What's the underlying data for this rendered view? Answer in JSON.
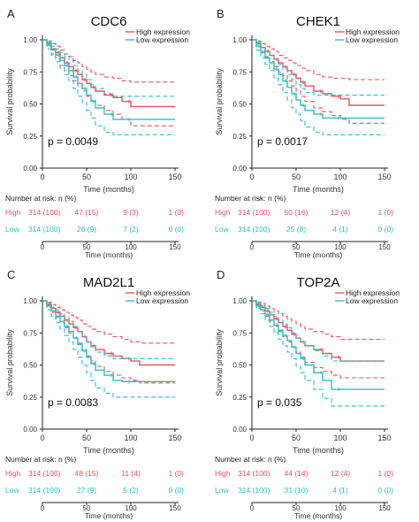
{
  "chart_data": [
    {
      "type": "line",
      "panel_letter": "A",
      "title": "CDC6",
      "xlabel": "Time (months)",
      "ylabel": "Survival probability",
      "xlim": [
        0,
        150
      ],
      "ylim": [
        0,
        1
      ],
      "xticks": [
        "0",
        "50",
        "100",
        "150"
      ],
      "yticks": [
        "0.00",
        "0.25",
        "0.50",
        "0.75",
        "1.00"
      ],
      "legend": [
        "High expression",
        "Low expression"
      ],
      "pvalue": "p = 0.0049",
      "series": [
        {
          "name": "High expression",
          "color": "#e8535a",
          "x": [
            0,
            5,
            10,
            15,
            20,
            25,
            30,
            35,
            40,
            45,
            50,
            55,
            60,
            70,
            80,
            90,
            100,
            150
          ],
          "y": [
            1.0,
            0.97,
            0.93,
            0.9,
            0.86,
            0.82,
            0.79,
            0.76,
            0.73,
            0.69,
            0.66,
            0.63,
            0.6,
            0.57,
            0.55,
            0.52,
            0.48,
            0.48
          ],
          "upper": [
            1.0,
            0.99,
            0.97,
            0.95,
            0.92,
            0.89,
            0.87,
            0.84,
            0.82,
            0.79,
            0.77,
            0.75,
            0.73,
            0.71,
            0.7,
            0.68,
            0.67,
            0.67
          ],
          "lower": [
            1.0,
            0.95,
            0.89,
            0.85,
            0.8,
            0.76,
            0.72,
            0.68,
            0.64,
            0.6,
            0.56,
            0.53,
            0.49,
            0.45,
            0.42,
            0.38,
            0.33,
            0.33
          ]
        },
        {
          "name": "Low expression",
          "color": "#2bbfc6",
          "x": [
            0,
            5,
            10,
            15,
            20,
            25,
            30,
            35,
            40,
            45,
            50,
            55,
            60,
            70,
            80,
            90,
            100,
            150
          ],
          "y": [
            1.0,
            0.96,
            0.92,
            0.88,
            0.84,
            0.8,
            0.76,
            0.71,
            0.66,
            0.62,
            0.57,
            0.52,
            0.47,
            0.42,
            0.38,
            0.38,
            0.38,
            0.38
          ],
          "upper": [
            1.0,
            0.98,
            0.95,
            0.93,
            0.9,
            0.87,
            0.84,
            0.8,
            0.76,
            0.73,
            0.69,
            0.65,
            0.62,
            0.58,
            0.56,
            0.56,
            0.56,
            0.56
          ],
          "lower": [
            1.0,
            0.93,
            0.88,
            0.83,
            0.78,
            0.73,
            0.68,
            0.62,
            0.56,
            0.51,
            0.45,
            0.39,
            0.33,
            0.28,
            0.26,
            0.26,
            0.26,
            0.26
          ]
        }
      ],
      "risk_table": {
        "header": "Number at risk: n (%)",
        "rows": [
          {
            "label": "High",
            "color": "#e8535a",
            "values": [
              "314 (100)",
              "47 (15)",
              "9 (3)",
              "1 (0)"
            ]
          },
          {
            "label": "Low",
            "color": "#2bbfc6",
            "values": [
              "314 (100)",
              "28 (9)",
              "7 (2)",
              "0 (0)"
            ]
          }
        ],
        "xticks": [
          "0",
          "50",
          "100",
          "150"
        ],
        "xlabel": "Time (months)"
      }
    },
    {
      "type": "line",
      "panel_letter": "B",
      "title": "CHEK1",
      "xlabel": "Time (months)",
      "ylabel": "Survival probability",
      "xlim": [
        0,
        150
      ],
      "ylim": [
        0,
        1
      ],
      "xticks": [
        "0",
        "50",
        "100",
        "150"
      ],
      "yticks": [
        "0.00",
        "0.25",
        "0.50",
        "0.75",
        "1.00"
      ],
      "legend": [
        "High expression",
        "Low expression"
      ],
      "pvalue": "p = 0.0017",
      "series": [
        {
          "name": "High expression",
          "color": "#e8535a",
          "x": [
            0,
            5,
            10,
            15,
            20,
            25,
            30,
            35,
            40,
            45,
            50,
            55,
            60,
            70,
            80,
            90,
            100,
            110,
            150
          ],
          "y": [
            1.0,
            0.97,
            0.94,
            0.91,
            0.88,
            0.85,
            0.82,
            0.79,
            0.76,
            0.73,
            0.7,
            0.67,
            0.64,
            0.6,
            0.58,
            0.56,
            0.54,
            0.49,
            0.49
          ],
          "upper": [
            1.0,
            0.99,
            0.97,
            0.95,
            0.93,
            0.91,
            0.88,
            0.86,
            0.84,
            0.82,
            0.8,
            0.78,
            0.76,
            0.73,
            0.71,
            0.7,
            0.7,
            0.69,
            0.69
          ],
          "lower": [
            1.0,
            0.95,
            0.91,
            0.87,
            0.83,
            0.79,
            0.75,
            0.72,
            0.68,
            0.64,
            0.6,
            0.56,
            0.52,
            0.47,
            0.44,
            0.41,
            0.38,
            0.35,
            0.35
          ]
        },
        {
          "name": "Low expression",
          "color": "#2bbfc6",
          "x": [
            0,
            5,
            10,
            15,
            20,
            25,
            30,
            35,
            40,
            45,
            50,
            55,
            60,
            70,
            80,
            90,
            100,
            150
          ],
          "y": [
            1.0,
            0.95,
            0.9,
            0.86,
            0.82,
            0.77,
            0.73,
            0.68,
            0.63,
            0.58,
            0.53,
            0.49,
            0.45,
            0.42,
            0.39,
            0.39,
            0.39,
            0.39
          ],
          "upper": [
            1.0,
            0.98,
            0.94,
            0.91,
            0.88,
            0.85,
            0.81,
            0.77,
            0.73,
            0.69,
            0.65,
            0.62,
            0.59,
            0.57,
            0.57,
            0.57,
            0.57,
            0.57
          ],
          "lower": [
            1.0,
            0.92,
            0.86,
            0.81,
            0.76,
            0.7,
            0.65,
            0.59,
            0.53,
            0.47,
            0.42,
            0.37,
            0.32,
            0.28,
            0.26,
            0.26,
            0.26,
            0.26
          ]
        }
      ],
      "risk_table": {
        "header": "Number at risk: n (%)",
        "rows": [
          {
            "label": "High",
            "color": "#e8535a",
            "values": [
              "314 (100)",
              "50 (16)",
              "12 (4)",
              "1 (0)"
            ]
          },
          {
            "label": "Low",
            "color": "#2bbfc6",
            "values": [
              "314 (100)",
              "25 (8)",
              "4 (1)",
              "0 (0)"
            ]
          }
        ],
        "xticks": [
          "0",
          "50",
          "100",
          "150"
        ],
        "xlabel": "Time (months)"
      }
    },
    {
      "type": "line",
      "panel_letter": "C",
      "title": "MAD2L1",
      "xlabel": "Time (months)",
      "ylabel": "Survival probability",
      "xlim": [
        0,
        150
      ],
      "ylim": [
        0,
        1
      ],
      "xticks": [
        "0",
        "50",
        "100",
        "150"
      ],
      "yticks": [
        "0.00",
        "0.25",
        "0.50",
        "0.75",
        "1.00"
      ],
      "legend": [
        "High expression",
        "Low expression"
      ],
      "pvalue": "p = 0.0083",
      "series": [
        {
          "name": "High expression",
          "color": "#e8535a",
          "x": [
            0,
            5,
            10,
            15,
            20,
            25,
            30,
            35,
            40,
            45,
            50,
            55,
            60,
            70,
            80,
            90,
            100,
            110,
            150
          ],
          "y": [
            1.0,
            0.97,
            0.94,
            0.91,
            0.88,
            0.85,
            0.82,
            0.79,
            0.76,
            0.72,
            0.68,
            0.65,
            0.62,
            0.59,
            0.57,
            0.55,
            0.53,
            0.5,
            0.5
          ],
          "upper": [
            1.0,
            0.99,
            0.97,
            0.95,
            0.93,
            0.91,
            0.89,
            0.87,
            0.85,
            0.82,
            0.8,
            0.78,
            0.76,
            0.74,
            0.72,
            0.7,
            0.68,
            0.67,
            0.67
          ],
          "lower": [
            1.0,
            0.95,
            0.91,
            0.87,
            0.83,
            0.79,
            0.75,
            0.71,
            0.67,
            0.62,
            0.57,
            0.53,
            0.49,
            0.45,
            0.42,
            0.4,
            0.38,
            0.36,
            0.36
          ]
        },
        {
          "name": "Low expression",
          "color": "#2bbfc6",
          "x": [
            0,
            5,
            10,
            15,
            20,
            25,
            30,
            35,
            40,
            45,
            50,
            55,
            60,
            70,
            80,
            90,
            100,
            150
          ],
          "y": [
            1.0,
            0.96,
            0.92,
            0.88,
            0.84,
            0.8,
            0.76,
            0.71,
            0.66,
            0.61,
            0.56,
            0.51,
            0.46,
            0.42,
            0.38,
            0.37,
            0.37,
            0.37
          ],
          "upper": [
            1.0,
            0.98,
            0.95,
            0.93,
            0.9,
            0.87,
            0.84,
            0.8,
            0.76,
            0.72,
            0.68,
            0.64,
            0.6,
            0.57,
            0.55,
            0.55,
            0.55,
            0.55
          ],
          "lower": [
            1.0,
            0.93,
            0.88,
            0.83,
            0.78,
            0.73,
            0.68,
            0.62,
            0.56,
            0.5,
            0.44,
            0.38,
            0.32,
            0.28,
            0.25,
            0.25,
            0.25,
            0.25
          ]
        }
      ],
      "risk_table": {
        "header": "Number at risk: n (%)",
        "rows": [
          {
            "label": "High",
            "color": "#e8535a",
            "values": [
              "314 (100)",
              "48 (15)",
              "11 (4)",
              "1 (0)"
            ]
          },
          {
            "label": "Low",
            "color": "#2bbfc6",
            "values": [
              "314 (100)",
              "27 (9)",
              "5 (2)",
              "0 (0)"
            ]
          }
        ],
        "xticks": [
          "0",
          "50",
          "100",
          "150"
        ],
        "xlabel": "Time (months)"
      }
    },
    {
      "type": "line",
      "panel_letter": "D",
      "title": "TOP2A",
      "xlabel": "Time (months)",
      "ylabel": "Survival probability",
      "xlim": [
        0,
        150
      ],
      "ylim": [
        0,
        1
      ],
      "xticks": [
        "0",
        "50",
        "100",
        "150"
      ],
      "yticks": [
        "0.00",
        "0.25",
        "0.50",
        "0.75",
        "1.00"
      ],
      "legend": [
        "High expression",
        "Low expression"
      ],
      "pvalue": "p = 0.035",
      "series": [
        {
          "name": "High expression",
          "color": "#e8535a",
          "x": [
            0,
            5,
            10,
            15,
            20,
            25,
            30,
            35,
            40,
            45,
            50,
            55,
            60,
            70,
            80,
            90,
            100,
            150
          ],
          "y": [
            1.0,
            0.97,
            0.95,
            0.92,
            0.89,
            0.86,
            0.83,
            0.8,
            0.77,
            0.74,
            0.71,
            0.68,
            0.65,
            0.62,
            0.59,
            0.56,
            0.53,
            0.53
          ],
          "upper": [
            1.0,
            0.99,
            0.98,
            0.96,
            0.94,
            0.92,
            0.9,
            0.88,
            0.86,
            0.84,
            0.82,
            0.8,
            0.78,
            0.76,
            0.74,
            0.72,
            0.7,
            0.7
          ],
          "lower": [
            1.0,
            0.95,
            0.92,
            0.88,
            0.84,
            0.8,
            0.76,
            0.72,
            0.68,
            0.64,
            0.6,
            0.56,
            0.52,
            0.48,
            0.45,
            0.42,
            0.4,
            0.4
          ]
        },
        {
          "name": "Low expression",
          "color": "#2bbfc6",
          "x": [
            0,
            5,
            10,
            15,
            20,
            25,
            30,
            35,
            40,
            45,
            50,
            55,
            60,
            70,
            80,
            90,
            100,
            150
          ],
          "y": [
            1.0,
            0.96,
            0.93,
            0.89,
            0.85,
            0.81,
            0.77,
            0.73,
            0.69,
            0.64,
            0.59,
            0.55,
            0.5,
            0.44,
            0.38,
            0.31,
            0.31,
            0.31
          ],
          "upper": [
            1.0,
            0.98,
            0.96,
            0.94,
            0.91,
            0.88,
            0.85,
            0.82,
            0.79,
            0.75,
            0.71,
            0.68,
            0.65,
            0.61,
            0.57,
            0.53,
            0.53,
            0.53
          ],
          "lower": [
            1.0,
            0.94,
            0.9,
            0.85,
            0.8,
            0.75,
            0.7,
            0.65,
            0.6,
            0.55,
            0.49,
            0.44,
            0.38,
            0.31,
            0.24,
            0.18,
            0.18,
            0.18
          ]
        }
      ],
      "risk_table": {
        "header": "Number at risk: n (%)",
        "rows": [
          {
            "label": "High",
            "color": "#e8535a",
            "values": [
              "314 (100)",
              "44 (14)",
              "12 (4)",
              "1 (0)"
            ]
          },
          {
            "label": "Low",
            "color": "#2bbfc6",
            "values": [
              "314 (100)",
              "31 (10)",
              "4 (1)",
              "0 (0)"
            ]
          }
        ],
        "xticks": [
          "0",
          "50",
          "100",
          "150"
        ],
        "xlabel": "Time (months)"
      }
    }
  ]
}
